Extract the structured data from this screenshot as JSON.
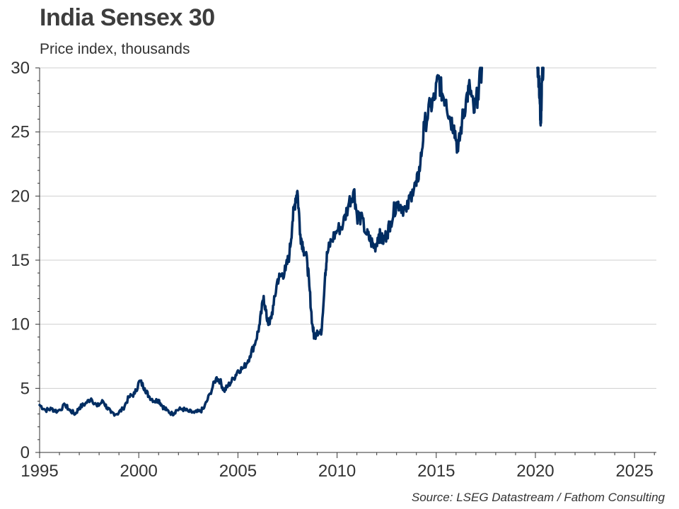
{
  "chart_data": {
    "type": "line",
    "title": "India Sensex 30",
    "subtitle": "Price index, thousands",
    "source": "Source: LSEG Datastream / Fathom Consulting",
    "xlim": [
      1995,
      2026.1
    ],
    "ylim": [
      0,
      30
    ],
    "xticks": [
      1995,
      2000,
      2005,
      2010,
      2015,
      2020,
      2025
    ],
    "yticks": [
      0,
      5,
      10,
      15,
      20,
      25,
      30
    ],
    "grid": "horizontal",
    "line_color": "#002D62",
    "series": [
      {
        "x": [
          1995.0,
          1995.3,
          1995.6,
          1995.9,
          1996.3,
          1996.5,
          1996.8,
          1997.0,
          1997.3,
          1997.6,
          1997.9,
          1998.2,
          1998.4,
          1998.6,
          1998.9,
          1999.2,
          1999.5,
          1999.8,
          2000.05,
          2000.3,
          2000.5,
          2000.8,
          2001.0,
          2001.2,
          2001.4,
          2001.7,
          2001.9,
          2002.2,
          2002.5,
          2002.8,
          2003.1,
          2003.3,
          2003.6,
          2003.9,
          2004.1,
          2004.3,
          2004.5,
          2004.8,
          2005.0,
          2005.3,
          2005.6,
          2005.9,
          2006.1,
          2006.3,
          2006.45,
          2006.6,
          2006.8,
          2007.0,
          2007.2,
          2007.4,
          2007.6,
          2007.75,
          2007.9,
          2008.0,
          2008.15,
          2008.3,
          2008.5,
          2008.6,
          2008.75,
          2008.85,
          2009.0,
          2009.2,
          2009.4,
          2009.5,
          2009.7,
          2010.0,
          2010.3,
          2010.6,
          2010.85,
          2011.0,
          2011.2,
          2011.5,
          2011.7,
          2011.9,
          2012.1,
          2012.3,
          2012.5,
          2012.7,
          2013.0,
          2013.2,
          2013.5,
          2013.8,
          2014.0,
          2014.2,
          2014.4,
          2014.7,
          2014.9,
          2015.1,
          2015.3,
          2015.5,
          2015.7,
          2015.9,
          2016.1,
          2016.3,
          2016.5,
          2016.7,
          2016.9,
          2017.1,
          2017.3
        ],
        "y": [
          3.7,
          3.3,
          3.4,
          3.2,
          3.7,
          3.3,
          3.0,
          3.5,
          3.8,
          4.2,
          3.6,
          4.0,
          3.5,
          3.1,
          3.0,
          3.4,
          4.3,
          4.6,
          5.6,
          5.0,
          4.4,
          4.0,
          4.1,
          3.6,
          3.3,
          3.0,
          3.3,
          3.4,
          3.2,
          3.1,
          3.2,
          3.5,
          4.6,
          5.8,
          5.6,
          4.8,
          5.2,
          5.8,
          6.4,
          6.6,
          7.5,
          8.7,
          10.0,
          12.2,
          10.5,
          10.0,
          11.5,
          13.5,
          13.8,
          14.2,
          15.5,
          18.0,
          19.8,
          20.4,
          17.0,
          16.0,
          14.8,
          13.0,
          10.0,
          9.0,
          9.5,
          9.2,
          14.0,
          15.5,
          16.5,
          17.3,
          17.8,
          19.5,
          20.5,
          18.5,
          18.3,
          17.0,
          16.5,
          16.0,
          17.0,
          16.5,
          17.0,
          18.0,
          19.5,
          19.3,
          18.8,
          20.5,
          20.8,
          22.5,
          25.5,
          27.0,
          27.5,
          29.2,
          28.0,
          27.5,
          26.0,
          25.5,
          23.5,
          25.8,
          27.5,
          28.5,
          26.5,
          28.0,
          30.0
        ]
      },
      {
        "x": [
          2020.1,
          2020.18,
          2020.22,
          2020.26,
          2020.3,
          2020.34,
          2020.4
        ],
        "y": [
          30.0,
          29.0,
          27.5,
          26.0,
          27.0,
          29.5,
          30.0
        ]
      }
    ]
  }
}
